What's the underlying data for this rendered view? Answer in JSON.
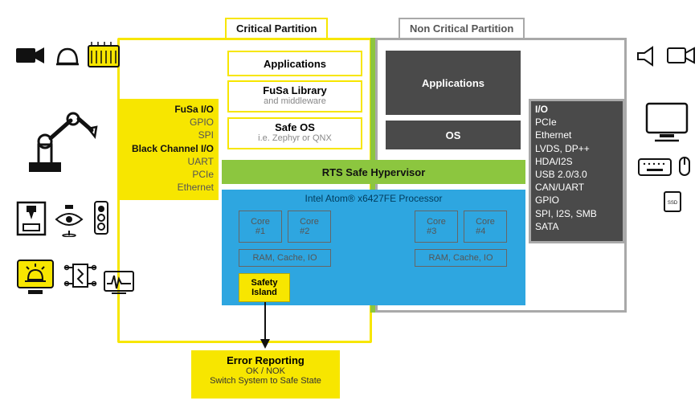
{
  "colors": {
    "yellow": "#f7e600",
    "yellow_border": "#f7e600",
    "grey_dark": "#4a4a4a",
    "grey_mid": "#a9a9a9",
    "green": "#8cc63f",
    "green_divider": "#8cc63f",
    "blue": "#2ea6e0",
    "blue_inner": "#7d7d7d",
    "white": "#ffffff",
    "black": "#111111",
    "text_grey": "#6b6b6b"
  },
  "partitions": {
    "critical_label": "Critical Partition",
    "noncritical_label": "Non Critical Partition"
  },
  "critical": {
    "apps": "Applications",
    "fusa_lib": "FuSa Library",
    "fusa_lib_sub": "and middleware",
    "safe_os": "Safe OS",
    "safe_os_sub": "i.e. Zephyr or QNX"
  },
  "noncritical": {
    "apps": "Applications",
    "os": "OS"
  },
  "hypervisor": "RTS Safe Hypervisor",
  "processor": {
    "title": "Intel Atom® x6427FE Processor",
    "core1": "Core #1",
    "core2": "Core #2",
    "core3": "Core #3",
    "core4": "Core #4",
    "ram1": "RAM, Cache, IO",
    "ram2": "RAM, Cache, IO"
  },
  "safety_island": "Safety Island",
  "error_box": {
    "title": "Error Reporting",
    "line1": "OK / NOK",
    "line2": "Switch System to Safe State"
  },
  "fusa_io": {
    "title1": "FuSa I/O",
    "r1": "GPIO",
    "r2": "SPI",
    "title2": "Black Channel I/O",
    "r3": "UART",
    "r4": "PCIe",
    "r5": "Ethernet"
  },
  "right_io": {
    "title": "I/O",
    "r1": "PCIe",
    "r2": "Ethernet",
    "r3": "LVDS, DP++",
    "r4": "HDA/I2S",
    "r5": "USB 2.0/3.0",
    "r6": "CAN/UART",
    "r7": "GPIO",
    "r8": "SPI, I2S, SMB",
    "r9": "SATA"
  }
}
